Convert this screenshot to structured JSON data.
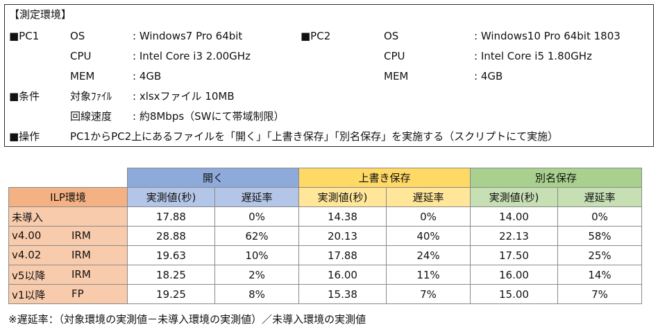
{
  "environment": {
    "title": "【測定環境】",
    "pc1": {
      "label": "■PC1",
      "rows": [
        {
          "key": "OS",
          "value": ": Windows7 Pro 64bit"
        },
        {
          "key": "CPU",
          "value": ": Intel Core i3 2.00GHz"
        },
        {
          "key": "MEM",
          "value": ": 4GB"
        }
      ]
    },
    "pc2": {
      "label": "■PC2",
      "rows": [
        {
          "key": "OS",
          "value": ": Windows10 Pro 64bit 1803"
        },
        {
          "key": "CPU",
          "value": ": Intel Core i5 1.80GHz"
        },
        {
          "key": "MEM",
          "value": ": 4GB"
        }
      ]
    },
    "conditions": {
      "label": "■条件",
      "rows": [
        {
          "key": "対象ﾌｧｲﾙ",
          "value": ": xlsxファイル 10MB"
        },
        {
          "key": "回線速度",
          "value": ": 約8Mbps（SWにて帯域制限）"
        }
      ]
    },
    "operation": {
      "label": "■操作",
      "text": "PC1からPC2上にあるファイルを「開く」「上書き保存」「別名保存」を実施する（スクリプトにて実施）"
    }
  },
  "table": {
    "group_headers": [
      "開く",
      "上書き保存",
      "別名保存"
    ],
    "env_header": "ILP環境",
    "sub_headers": [
      "実測値(秒)",
      "遅延率"
    ],
    "rows": [
      {
        "version": "未導入",
        "kind": "",
        "values": [
          "17.88",
          "0%",
          "14.38",
          "0%",
          "14.00",
          "0%"
        ]
      },
      {
        "version": "v4.00",
        "kind": "IRM",
        "values": [
          "28.88",
          "62%",
          "20.13",
          "40%",
          "22.13",
          "58%"
        ]
      },
      {
        "version": "v4.02",
        "kind": "IRM",
        "values": [
          "19.63",
          "10%",
          "17.88",
          "24%",
          "17.50",
          "25%"
        ]
      },
      {
        "version": "v5以降",
        "kind": "IRM",
        "values": [
          "18.25",
          "2%",
          "16.00",
          "11%",
          "16.00",
          "14%"
        ]
      },
      {
        "version": "v1以降",
        "kind": "FP",
        "values": [
          "19.25",
          "8%",
          "15.38",
          "7%",
          "15.00",
          "7%"
        ]
      }
    ],
    "colors": {
      "open_header": "#8EAADB",
      "overwrite_header": "#FFD966",
      "saveas_header": "#A9D08E",
      "open_sub": "#B4C6E7",
      "overwrite_sub": "#FFE699",
      "saveas_sub": "#C6E0B4",
      "env_header": "#F4B183",
      "env_rows": "#F8CBAD"
    }
  },
  "note": "※遅延率：（対象環境の実測値－未導入環境の実測値）／未導入環境の実測値"
}
